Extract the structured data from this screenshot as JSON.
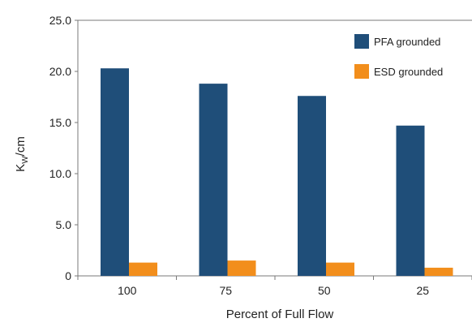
{
  "chart_data": {
    "type": "bar",
    "title": "",
    "xlabel": "Percent of Full Flow",
    "ylabel_main": "K",
    "ylabel_sub": "W",
    "ylabel_rest": "/cm",
    "categories": [
      "100",
      "75",
      "50",
      "25"
    ],
    "series": [
      {
        "name": "PFA grounded",
        "color": "#1f4e79",
        "values": [
          20.3,
          18.8,
          17.6,
          14.7
        ]
      },
      {
        "name": "ESD grounded",
        "color": "#f28e1c",
        "values": [
          1.3,
          1.5,
          1.3,
          0.8
        ]
      }
    ],
    "ylim": [
      0,
      25
    ],
    "yticks": [
      "25.0",
      "20.0",
      "15.0",
      "10.0",
      "5.0",
      "0"
    ],
    "ytick_values": [
      25,
      20,
      15,
      10,
      5,
      0
    ],
    "grid": false,
    "legend_position": "top-right"
  }
}
